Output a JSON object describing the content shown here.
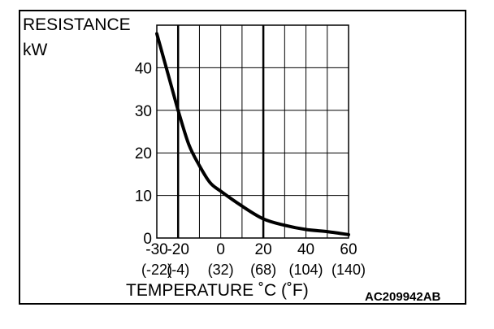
{
  "chart_data": {
    "type": "line",
    "ylabel_line1": "RESISTANCE",
    "ylabel_line2": "kW",
    "xlabel": "TEMPERATURE ˚C (˚F)",
    "figure_code": "AC209942AB",
    "x_ticks": [
      -30,
      -20,
      0,
      20,
      40,
      60
    ],
    "x_ticks_f": [
      "(-22)",
      "(-4)",
      "(32)",
      "(68)",
      "(104)",
      "(140)"
    ],
    "y_ticks": [
      0,
      10,
      20,
      30,
      40
    ],
    "xlim": [
      -30,
      60
    ],
    "ylim": [
      0,
      50
    ],
    "grid": true,
    "series": [
      {
        "x": [
          -30,
          -25,
          -20,
          -15,
          -10,
          -5,
          0,
          10,
          20,
          30,
          40,
          50,
          60
        ],
        "y": [
          48,
          39,
          30,
          22,
          17,
          13,
          11,
          7.5,
          4.5,
          3,
          2,
          1.5,
          0.8
        ]
      }
    ]
  }
}
